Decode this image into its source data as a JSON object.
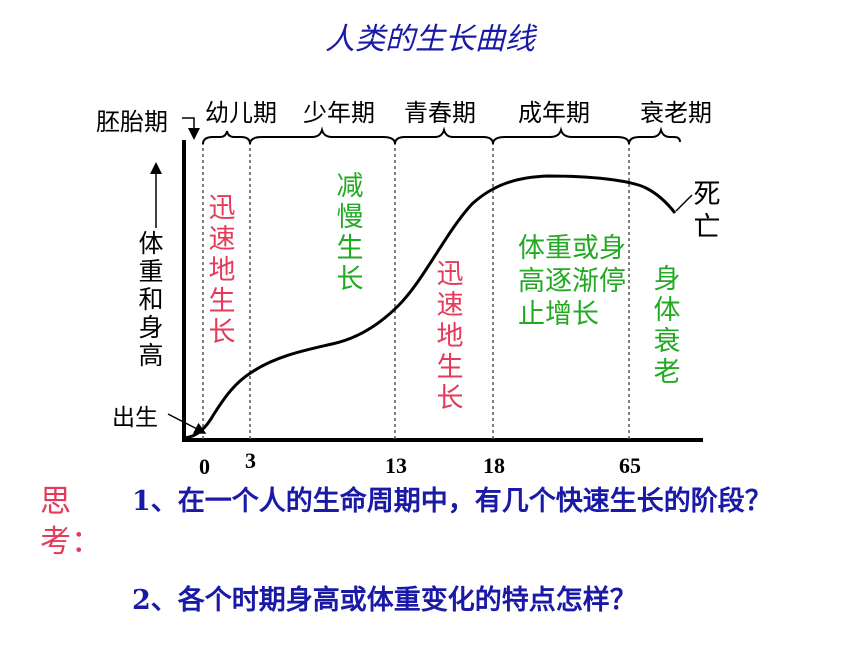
{
  "title": "人类的生长曲线",
  "periods": {
    "embryo": "胚胎期",
    "infancy": "幼儿期",
    "childhood": "少年期",
    "adolescence": "青春期",
    "adulthood": "成年期",
    "old_age": "衰老期"
  },
  "stage_notes": {
    "rapid_1": "迅速地生长",
    "slow": "减慢生长",
    "rapid_2": "迅速地生长",
    "gradual_stop": "体重或身高逐渐停止增长",
    "decline": "身体衰老"
  },
  "y_axis_label": "体重和身高",
  "birth_label": "出生",
  "death_label": "死亡",
  "x_ticks": [
    "0",
    "3",
    "13",
    "18",
    "65"
  ],
  "think_label": "思考：",
  "questions": {
    "q1": "1、在一个人的生命周期中，有几个快速生长的阶段？",
    "q2": "2、各个时期身高或体重变化的特点怎样？"
  }
}
